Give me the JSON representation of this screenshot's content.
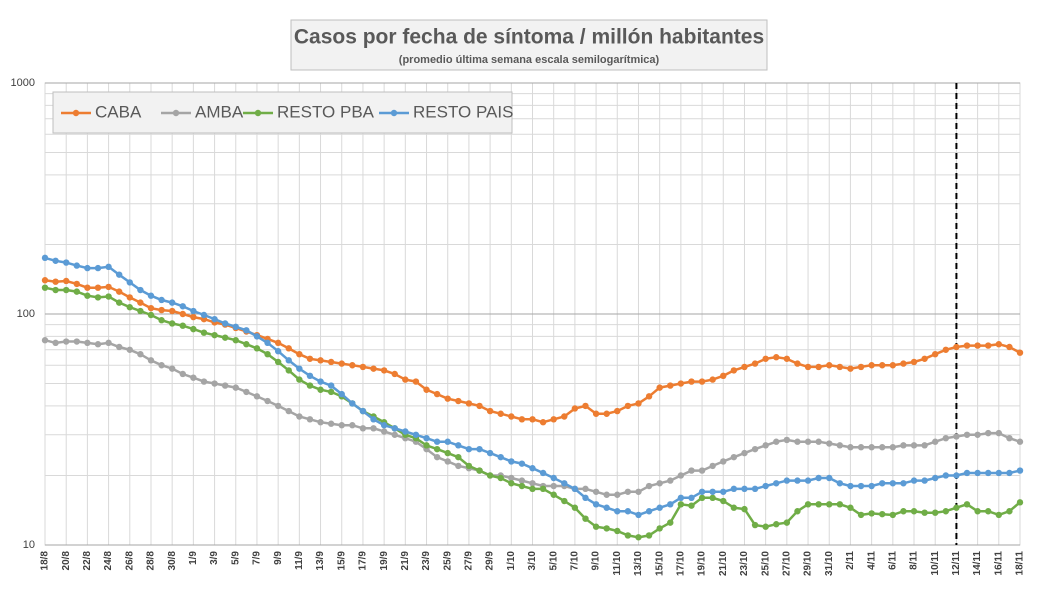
{
  "chart_data": {
    "type": "line",
    "title": "Casos por fecha de síntoma / millón habitantes",
    "subtitle": "(promedio última semana escala semilogarítmica)",
    "categories": [
      "18/8",
      null,
      "20/8",
      null,
      "22/8",
      null,
      "24/8",
      null,
      "26/8",
      null,
      "28/8",
      null,
      "30/8",
      null,
      "1/9",
      null,
      "3/9",
      null,
      "5/9",
      null,
      "7/9",
      null,
      "9/9",
      null,
      "11/9",
      null,
      "13/9",
      null,
      "15/9",
      null,
      "17/9",
      null,
      "19/9",
      null,
      "21/9",
      null,
      "23/9",
      null,
      "25/9",
      null,
      "27/9",
      null,
      "29/9",
      null,
      "1/10",
      null,
      "3/10",
      null,
      "5/10",
      null,
      "7/10",
      null,
      "9/10",
      null,
      "11/10",
      null,
      "13/10",
      null,
      "15/10",
      null,
      "17/10",
      null,
      "19/10",
      null,
      "21/10",
      null,
      "23/10",
      null,
      "25/10",
      null,
      "27/10",
      null,
      "29/10",
      null,
      "31/10",
      null,
      "2/11",
      null,
      "4/11",
      null,
      "6/11",
      null,
      "8/11",
      null,
      "10/11",
      null,
      "12/11",
      null,
      "14/11",
      null,
      "16/11",
      null,
      "18/11"
    ],
    "series": [
      {
        "name": "CABA",
        "color": "#ed7d31",
        "values": [
          140,
          138,
          139,
          135,
          130,
          130,
          131,
          125,
          118,
          112,
          106,
          104,
          103,
          100,
          97,
          95,
          92,
          90,
          87,
          84,
          81,
          78,
          75,
          71,
          67,
          64,
          63,
          62,
          61,
          60,
          59,
          58,
          57,
          55,
          52,
          51,
          47,
          45,
          43,
          42,
          41,
          40,
          38,
          37,
          36,
          35,
          35,
          34,
          35,
          36,
          39,
          40,
          37,
          37,
          38,
          40,
          41,
          44,
          48,
          49,
          50,
          51,
          51,
          52,
          54,
          57,
          59,
          61,
          64,
          65,
          64,
          61,
          59,
          59,
          60,
          59,
          58,
          59,
          60,
          60,
          60,
          61,
          62,
          64,
          67,
          70,
          72,
          73,
          73,
          73,
          74,
          72,
          68
        ]
      },
      {
        "name": "AMBA",
        "color": "#a5a5a5",
        "values": [
          77,
          75,
          76,
          76,
          75,
          74,
          75,
          72,
          70,
          67,
          63,
          60,
          58,
          55,
          53,
          51,
          50,
          49,
          48,
          46,
          44,
          42,
          40,
          38,
          36,
          35,
          34,
          33.5,
          33,
          33,
          32,
          32,
          31,
          30,
          29,
          28,
          26,
          24,
          23,
          22,
          21.5,
          21,
          20,
          20,
          19.5,
          19,
          18.5,
          18,
          18,
          18,
          17.5,
          17.5,
          17,
          16.5,
          16.5,
          17,
          17,
          18,
          18.5,
          19,
          20,
          21,
          21,
          22,
          23,
          24,
          25,
          26,
          27,
          28,
          28.5,
          28,
          28,
          28,
          27.5,
          27,
          26.5,
          26.5,
          26.5,
          26.5,
          26.5,
          27,
          27,
          27,
          28,
          29,
          29.5,
          30,
          30,
          30.5,
          30.5,
          29,
          28
        ]
      },
      {
        "name": "RESTO PBA",
        "color": "#70ad47",
        "values": [
          130,
          127,
          127,
          125,
          120,
          118,
          119,
          112,
          107,
          103,
          99,
          94,
          91,
          89,
          86,
          83,
          81,
          79,
          77,
          74,
          71,
          67,
          62,
          57,
          52,
          49,
          47,
          46,
          44,
          41,
          38,
          36,
          34,
          32,
          30,
          29,
          27,
          26,
          25,
          24,
          22,
          21,
          20,
          19.5,
          18.5,
          18,
          17.5,
          17.5,
          16.5,
          15.5,
          14.5,
          13,
          12,
          11.8,
          11.5,
          11,
          10.8,
          11,
          11.8,
          12.5,
          15,
          14.8,
          16,
          16,
          15.5,
          14.5,
          14.3,
          12.2,
          12,
          12.3,
          12.5,
          14,
          15,
          15,
          15,
          15,
          14.5,
          13.5,
          13.7,
          13.6,
          13.5,
          14,
          14,
          13.8,
          13.8,
          14,
          14.5,
          15,
          14,
          14,
          13.5,
          14,
          15.3
        ]
      },
      {
        "name": "RESTO PAIS",
        "color": "#5b9bd5",
        "values": [
          175,
          170,
          167,
          162,
          158,
          158,
          160,
          148,
          137,
          127,
          120,
          115,
          112,
          108,
          103,
          99,
          95,
          91,
          88,
          85,
          80,
          75,
          69,
          63,
          58,
          54,
          51,
          49,
          45,
          41,
          38,
          35,
          33,
          32,
          31,
          30,
          29,
          28,
          28,
          27,
          26,
          26,
          25,
          24,
          23,
          22.5,
          21.5,
          20.5,
          19.5,
          18.5,
          17.5,
          16,
          15,
          14.5,
          14,
          14,
          13.5,
          14,
          14.5,
          15,
          16,
          16,
          17,
          17,
          17,
          17.5,
          17.5,
          17.5,
          18,
          18.5,
          19,
          19,
          19,
          19.5,
          19.5,
          18.5,
          18,
          18,
          18,
          18.5,
          18.5,
          18.5,
          19,
          19,
          19.5,
          20,
          20,
          20.5,
          20.5,
          20.5,
          20.5,
          20.5,
          21
        ]
      }
    ],
    "ylim": [
      10,
      1000
    ],
    "yticks": [
      10,
      100,
      1000
    ],
    "log_scale": true,
    "grid": true,
    "legend": "top-left",
    "vline": "12/11"
  }
}
